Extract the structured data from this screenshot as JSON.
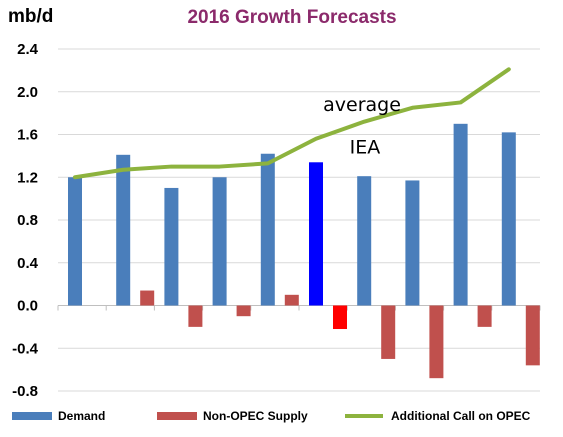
{
  "chart_data": {
    "type": "bar",
    "title": "2016 Growth Forecasts",
    "ylabel": "mb/d",
    "ylim": [
      -0.8,
      2.4
    ],
    "yticks": [
      "2.4",
      "2.0",
      "1.6",
      "1.2",
      "0.8",
      "0.4",
      "0.0",
      "-0.4",
      "-0.8"
    ],
    "ytick_values": [
      2.4,
      2.0,
      1.6,
      1.2,
      0.8,
      0.4,
      0.0,
      -0.4,
      -0.8
    ],
    "grid": true,
    "legend_position": "bottom",
    "categories": [
      "",
      "",
      "",
      "",
      "",
      "",
      "",
      "",
      "",
      ""
    ],
    "highlight_index": 5,
    "highlight_color": "#0000FF",
    "series": [
      {
        "name": "Demand",
        "kind": "bar",
        "color": "#4A7EBB",
        "values": [
          1.2,
          1.41,
          1.1,
          1.2,
          1.42,
          1.34,
          1.21,
          1.17,
          1.7,
          1.62
        ]
      },
      {
        "name": "Non-OPEC Supply",
        "kind": "bar",
        "color": "#C0504D",
        "values": [
          0.0,
          0.14,
          -0.2,
          -0.1,
          0.1,
          -0.22,
          -0.5,
          -0.68,
          -0.2,
          -0.56
        ]
      },
      {
        "name": "Additional Call on OPEC",
        "kind": "line",
        "color": "#8DB33E",
        "values": [
          1.2,
          1.27,
          1.3,
          1.3,
          1.33,
          1.56,
          1.72,
          1.85,
          1.9,
          2.21
        ]
      }
    ],
    "annotations": [
      {
        "text": "average",
        "x_index": 5.75,
        "y": 1.82
      },
      {
        "text": "IEA",
        "x_index": 6.3,
        "y": 1.42
      }
    ]
  }
}
